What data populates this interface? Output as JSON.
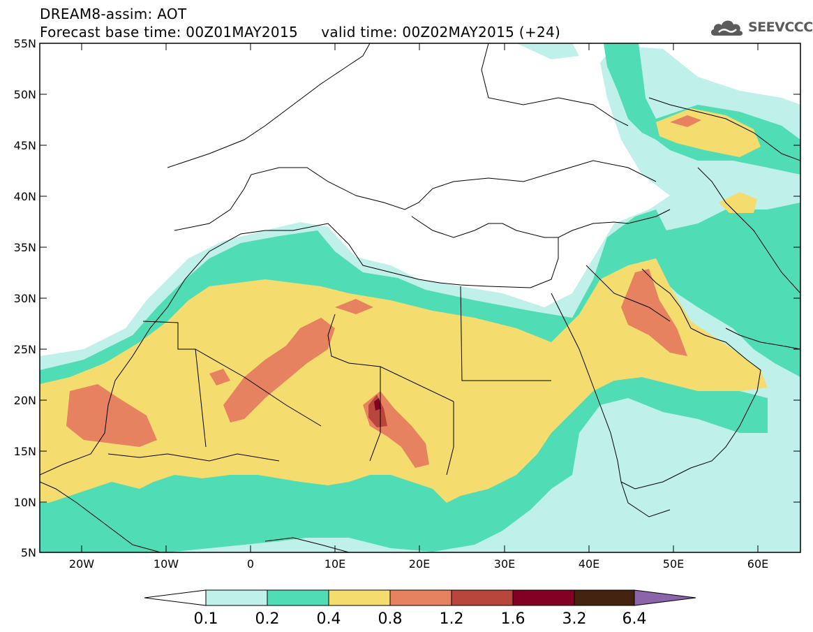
{
  "title": {
    "line1": "DREAM8-assim: AOT",
    "line2": "Forecast base time: 00Z01MAY2015     valid time: 00Z02MAY2015 (+24)"
  },
  "logo": {
    "text": "SEEVCCC",
    "icon": "cloud-icon"
  },
  "map": {
    "region": {
      "lon": [
        -25,
        65
      ],
      "lat": [
        5,
        55
      ]
    },
    "lat_ticks": [
      "55N",
      "50N",
      "45N",
      "40N",
      "35N",
      "30N",
      "25N",
      "20N",
      "15N",
      "10N",
      "5N"
    ],
    "lon_ticks": [
      "20W",
      "10W",
      "0",
      "10E",
      "20E",
      "30E",
      "40E",
      "50E",
      "60E"
    ]
  },
  "colorbar": {
    "labels": [
      "0.1",
      "0.2",
      "0.4",
      "0.8",
      "1.2",
      "1.6",
      "3.2",
      "6.4"
    ],
    "colors": [
      "#ffffff",
      "#bff0ea",
      "#50dcb4",
      "#f5dc6e",
      "#e6825f",
      "#b9463c",
      "#820023",
      "#41230f",
      "#8c64aa"
    ]
  }
}
